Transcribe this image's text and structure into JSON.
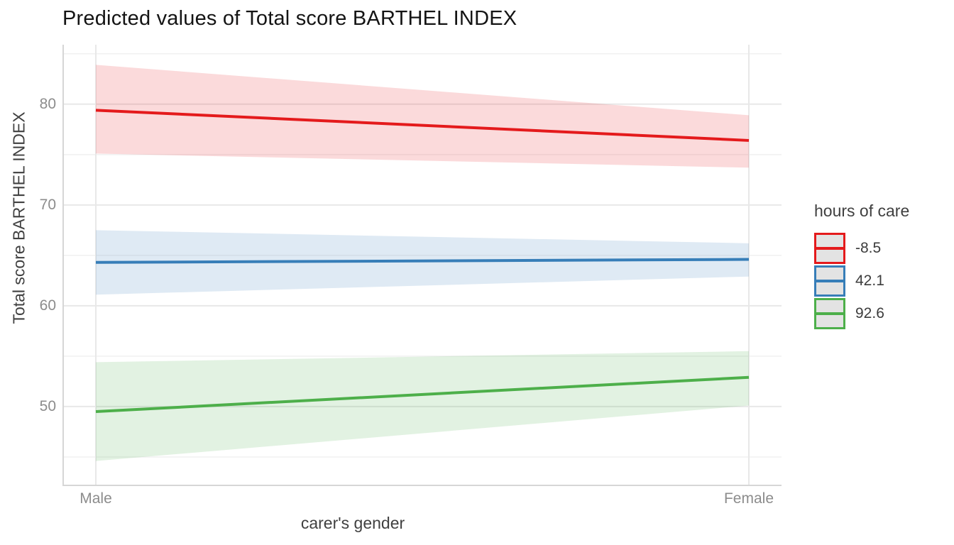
{
  "chart_data": {
    "type": "line",
    "title": "Predicted values of Total score BARTHEL INDEX",
    "xlabel": "carer's gender",
    "ylabel": "Total score BARTHEL INDEX",
    "legend_title": "hours of care",
    "legend_position": "right",
    "categories": [
      "Male",
      "Female"
    ],
    "yticks": [
      50,
      60,
      70,
      80
    ],
    "yminor": [
      45,
      55,
      65,
      75,
      85
    ],
    "ylim": [
      42.25,
      85.9
    ],
    "grid": true,
    "series": [
      {
        "name": "-8.5",
        "color": "#E41A1C",
        "values": [
          79.4,
          76.4
        ],
        "ci_lower": [
          75.1,
          73.7
        ],
        "ci_upper": [
          83.9,
          78.9
        ]
      },
      {
        "name": "42.1",
        "color": "#377EB8",
        "values": [
          64.3,
          64.6
        ],
        "ci_lower": [
          61.1,
          62.9
        ],
        "ci_upper": [
          67.5,
          66.2
        ]
      },
      {
        "name": "92.6",
        "color": "#4DAF4A",
        "values": [
          49.5,
          52.9
        ],
        "ci_lower": [
          44.6,
          50.1
        ],
        "ci_upper": [
          54.4,
          55.5
        ]
      }
    ],
    "style": {
      "major_grid": "#e8e8e8",
      "minor_grid": "#f1f1f1",
      "axis_line": "#d6d6d6",
      "ribbon_opacity": 0.16,
      "line_width": 4,
      "legend_key_fill": "#e3e3e3",
      "tick_label_color": "#8c8c8c",
      "axis_title_color": "#404040",
      "title_color": "#141414"
    }
  }
}
